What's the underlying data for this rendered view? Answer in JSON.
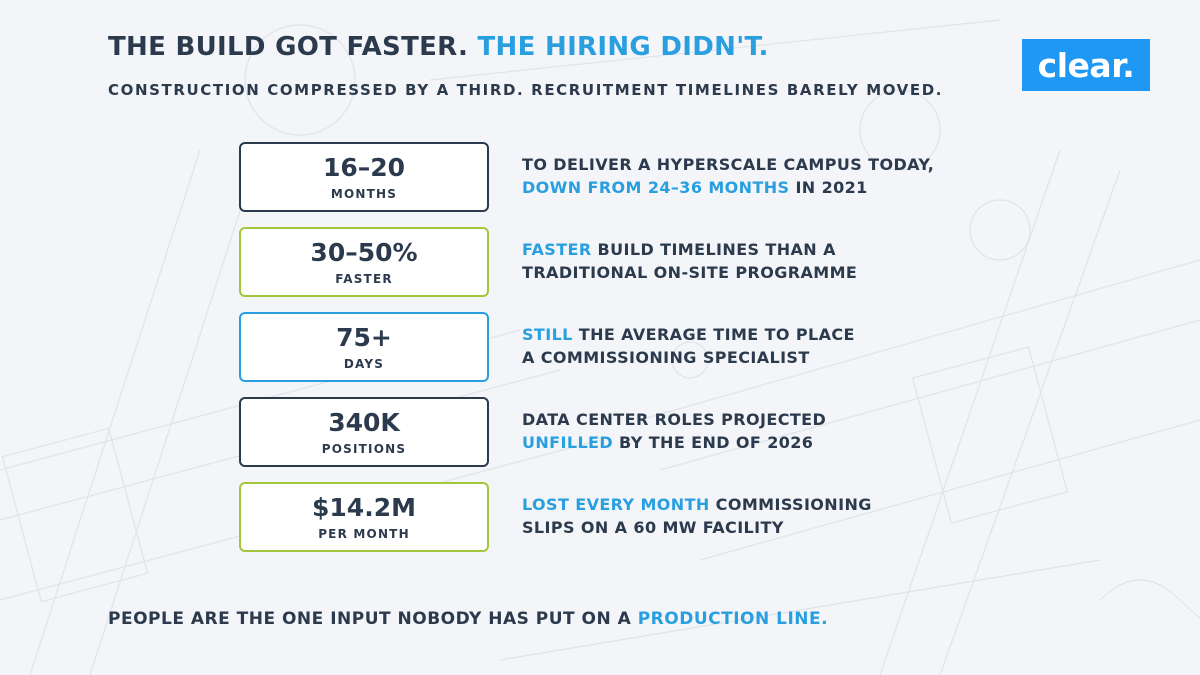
{
  "header": {
    "title_part1": "THE BUILD GOT FASTER.",
    "title_part2": "THE HIRING DIDN'T.",
    "subtitle": "CONSTRUCTION COMPRESSED BY A THIRD. RECRUITMENT TIMELINES BARELY MOVED.",
    "logo_text": "clear."
  },
  "stats": [
    {
      "value": "16–20",
      "unit": "MONTHS",
      "border_color": "#2c3a4d",
      "line1": "TO DELIVER A HYPERSCALE CAMPUS TODAY,",
      "line2_accent": "DOWN FROM 24–36 MONTHS",
      "line2_rest": " IN 2021"
    },
    {
      "value": "30–50%",
      "unit": "FASTER",
      "border_color": "#a3c73c",
      "line1_accent": "FASTER",
      "line1_rest": " BUILD TIMELINES THAN A",
      "line2": "TRADITIONAL ON-SITE PROGRAMME"
    },
    {
      "value": "75+",
      "unit": "DAYS",
      "border_color": "#2a9fe0",
      "line1_accent": "STILL",
      "line1_rest": " THE AVERAGE TIME TO PLACE",
      "line2": "A COMMISSIONING SPECIALIST"
    },
    {
      "value": "340K",
      "unit": "POSITIONS",
      "border_color": "#2c3a4d",
      "line1": "DATA CENTER ROLES PROJECTED",
      "line2_accent": "UNFILLED",
      "line2_rest": " BY THE END OF 2026"
    },
    {
      "value": "$14.2M",
      "unit": "PER MONTH",
      "border_color": "#a3c73c",
      "line1_accent": "LOST EVERY MONTH",
      "line1_rest": " COMMISSIONING",
      "line2": "SLIPS ON A 60 MW FACILITY"
    }
  ],
  "footer": {
    "text": "PEOPLE ARE THE ONE INPUT NOBODY HAS PUT ON A ",
    "accent": "PRODUCTION LINE."
  },
  "colors": {
    "text": "#2c3a4d",
    "accent": "#2a9fe0",
    "green": "#a3c73c",
    "logo_bg": "#1e98f2",
    "background": "#f3f5f8"
  }
}
